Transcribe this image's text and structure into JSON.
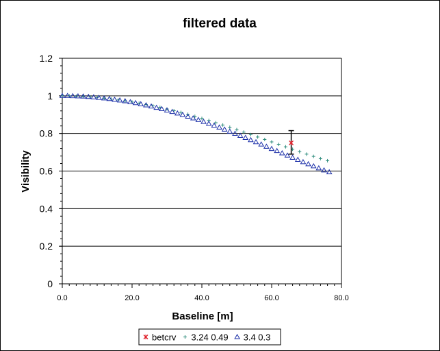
{
  "chart_data": {
    "type": "scatter",
    "title": "filtered data",
    "xlabel": "Baseline [m]",
    "ylabel": "Visibility",
    "xlim": [
      0,
      80
    ],
    "ylim": [
      0,
      1.2
    ],
    "x_ticks": [
      "0.0",
      "20.0",
      "40.0",
      "60.0",
      "80.0"
    ],
    "y_ticks": [
      "0",
      "0.2",
      "0.4",
      "0.6",
      "0.8",
      "1",
      "1.2"
    ],
    "grid": "horizontal",
    "legend_position": "bottom",
    "series": [
      {
        "name": "betcrv",
        "marker": "star",
        "color": "#e0202a",
        "points": [
          {
            "x": 65.6,
            "y": 0.75,
            "yerr_low": 0.69,
            "yerr_high": 0.815
          }
        ]
      },
      {
        "name": "3.24 0.49",
        "marker": "plus",
        "color": "#2a8a7a",
        "points": [
          {
            "x": 0,
            "y": 1.0
          },
          {
            "x": 2,
            "y": 1.0
          },
          {
            "x": 4,
            "y": 0.998
          },
          {
            "x": 6,
            "y": 0.996
          },
          {
            "x": 8,
            "y": 0.994
          },
          {
            "x": 10,
            "y": 0.991
          },
          {
            "x": 12,
            "y": 0.987
          },
          {
            "x": 14,
            "y": 0.983
          },
          {
            "x": 16,
            "y": 0.978
          },
          {
            "x": 18,
            "y": 0.973
          },
          {
            "x": 20,
            "y": 0.967
          },
          {
            "x": 22,
            "y": 0.961
          },
          {
            "x": 24,
            "y": 0.954
          },
          {
            "x": 26,
            "y": 0.947
          },
          {
            "x": 28,
            "y": 0.939
          },
          {
            "x": 30,
            "y": 0.93
          },
          {
            "x": 32,
            "y": 0.921
          },
          {
            "x": 34,
            "y": 0.912
          },
          {
            "x": 36,
            "y": 0.902
          },
          {
            "x": 38,
            "y": 0.891
          },
          {
            "x": 40,
            "y": 0.88
          },
          {
            "x": 42,
            "y": 0.869
          },
          {
            "x": 44,
            "y": 0.857
          },
          {
            "x": 46,
            "y": 0.845
          },
          {
            "x": 48,
            "y": 0.833
          },
          {
            "x": 50,
            "y": 0.82
          },
          {
            "x": 52,
            "y": 0.807
          },
          {
            "x": 54,
            "y": 0.794
          },
          {
            "x": 56,
            "y": 0.781
          },
          {
            "x": 58,
            "y": 0.768
          },
          {
            "x": 60,
            "y": 0.755
          },
          {
            "x": 62,
            "y": 0.742
          },
          {
            "x": 64,
            "y": 0.729
          },
          {
            "x": 66,
            "y": 0.716
          },
          {
            "x": 68,
            "y": 0.703
          },
          {
            "x": 70,
            "y": 0.69
          },
          {
            "x": 72,
            "y": 0.678
          },
          {
            "x": 74,
            "y": 0.666
          },
          {
            "x": 76,
            "y": 0.655
          }
        ]
      },
      {
        "name": "3.4 0.3",
        "marker": "triangle",
        "color": "#1a2ea8",
        "points": [
          {
            "x": 0,
            "y": 1.0
          },
          {
            "x": 1.5,
            "y": 1.0
          },
          {
            "x": 3,
            "y": 0.999
          },
          {
            "x": 4.5,
            "y": 0.998
          },
          {
            "x": 6,
            "y": 0.997
          },
          {
            "x": 7.5,
            "y": 0.995
          },
          {
            "x": 9,
            "y": 0.993
          },
          {
            "x": 10.5,
            "y": 0.99
          },
          {
            "x": 12,
            "y": 0.987
          },
          {
            "x": 13.5,
            "y": 0.984
          },
          {
            "x": 15,
            "y": 0.98
          },
          {
            "x": 16.5,
            "y": 0.976
          },
          {
            "x": 18,
            "y": 0.972
          },
          {
            "x": 19.5,
            "y": 0.967
          },
          {
            "x": 21,
            "y": 0.962
          },
          {
            "x": 22.5,
            "y": 0.956
          },
          {
            "x": 24,
            "y": 0.95
          },
          {
            "x": 25.5,
            "y": 0.944
          },
          {
            "x": 27,
            "y": 0.937
          },
          {
            "x": 28.5,
            "y": 0.93
          },
          {
            "x": 30,
            "y": 0.923
          },
          {
            "x": 31.5,
            "y": 0.915
          },
          {
            "x": 33,
            "y": 0.907
          },
          {
            "x": 34.5,
            "y": 0.899
          },
          {
            "x": 36,
            "y": 0.89
          },
          {
            "x": 37.5,
            "y": 0.881
          },
          {
            "x": 39,
            "y": 0.872
          },
          {
            "x": 40.5,
            "y": 0.862
          },
          {
            "x": 42,
            "y": 0.852
          },
          {
            "x": 43.5,
            "y": 0.842
          },
          {
            "x": 45,
            "y": 0.832
          },
          {
            "x": 46.5,
            "y": 0.821
          },
          {
            "x": 48,
            "y": 0.81
          },
          {
            "x": 49.5,
            "y": 0.799
          },
          {
            "x": 51,
            "y": 0.788
          },
          {
            "x": 52.5,
            "y": 0.777
          },
          {
            "x": 54,
            "y": 0.765
          },
          {
            "x": 55.5,
            "y": 0.754
          },
          {
            "x": 57,
            "y": 0.742
          },
          {
            "x": 58.5,
            "y": 0.73
          },
          {
            "x": 60,
            "y": 0.718
          },
          {
            "x": 61.5,
            "y": 0.707
          },
          {
            "x": 63,
            "y": 0.695
          },
          {
            "x": 64.5,
            "y": 0.683
          },
          {
            "x": 66,
            "y": 0.671
          },
          {
            "x": 67.5,
            "y": 0.66
          },
          {
            "x": 69,
            "y": 0.648
          },
          {
            "x": 70.5,
            "y": 0.637
          },
          {
            "x": 72,
            "y": 0.626
          },
          {
            "x": 73.5,
            "y": 0.615
          },
          {
            "x": 75,
            "y": 0.604
          },
          {
            "x": 76.5,
            "y": 0.594
          }
        ]
      }
    ]
  }
}
